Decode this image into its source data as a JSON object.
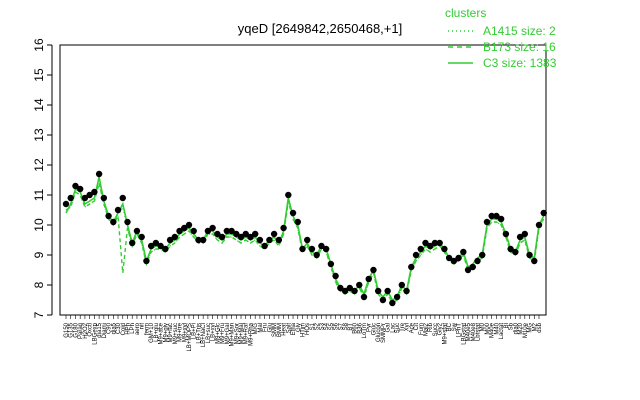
{
  "chart_data": {
    "type": "line",
    "title": "yqeD [2649842,2650468,+1]",
    "xlabel": "",
    "ylabel": "",
    "ylim": [
      7,
      16
    ],
    "yticks": [
      7,
      8,
      9,
      10,
      11,
      12,
      13,
      14,
      15,
      16
    ],
    "grid": false,
    "legend": {
      "title": "clusters",
      "placement": "top-right",
      "color": "#33cc33",
      "entries": [
        {
          "label": "A1415 size: 2",
          "style": "dotted"
        },
        {
          "label": "B173 size: 16",
          "style": "dashed"
        },
        {
          "label": "C3 size: 1383",
          "style": "solid"
        }
      ]
    },
    "x_tick_labels": [
      "G150",
      "G135",
      "G180",
      "Paraq",
      "H2O2",
      "Oxctl",
      "LBGexp",
      "dia15",
      "Diami",
      "C90",
      "dia5",
      "C30",
      "Cold",
      "HPh",
      "LPh",
      "aero",
      "nit",
      "ferm",
      "GM+10",
      "LB+glu",
      "M9+ace",
      "M9+gly",
      "M9+lac",
      "M9+suc",
      "M9+tre",
      "M9+xyl",
      "LB+MOPS",
      "LB+Pi",
      "LB+Tris",
      "LB+NaCl",
      "LB+suc",
      "LB+xyl",
      "M9+Glc",
      "M9+Fru",
      "M9+Gal",
      "M9+Man",
      "M9+Sor",
      "M9+Mal",
      "M9+Raf",
      "M9+Rha",
      "M/G",
      "Mal",
      "Fru",
      "Glu",
      "SMM",
      "BMM",
      "Heat",
      "Salt",
      "Efha",
      "Gly",
      "HTim",
      "HOs",
      "S1",
      "S2",
      "S3",
      "S4",
      "S5",
      "S6",
      "S7",
      "S8",
      "BT",
      "B60",
      "B36",
      "LoTm",
      "Pyr",
      "Gluc",
      "Glucon",
      "SMMPr",
      "Gal",
      "Lac",
      "Suc",
      "Tre",
      "Xyl",
      "Ace",
      "Cit",
      "Fum",
      "Mal2",
      "Rib",
      "Succ",
      "Gly2",
      "M9+stat",
      "BC",
      "Sw",
      "LPhT",
      "LBGstat",
      "M40e5",
      "M40e8",
      "Lbtstat",
      "M0",
      "M00",
      "M40e",
      "M40",
      "Lactat",
      "Bl",
      "Sb",
      "dia0",
      "M20",
      "M10e",
      "MG",
      "M2",
      "dsb"
    ],
    "series": [
      {
        "style": "solid",
        "values": [
          10.4,
          10.7,
          11.2,
          11.1,
          10.7,
          10.8,
          10.9,
          11.6,
          10.8,
          10.3,
          10.1,
          10.4,
          10.7,
          10.0,
          9.4,
          9.8,
          9.5,
          8.8,
          9.2,
          9.3,
          9.3,
          9.2,
          9.4,
          9.5,
          9.7,
          9.8,
          9.9,
          9.7,
          9.5,
          9.5,
          9.8,
          9.8,
          9.6,
          9.5,
          9.7,
          9.7,
          9.6,
          9.5,
          9.6,
          9.5,
          9.6,
          9.4,
          9.3,
          9.5,
          9.6,
          9.4,
          9.8,
          10.9,
          10.3,
          10.0,
          9.2,
          9.4,
          9.1,
          9.0,
          9.3,
          9.2,
          8.7,
          8.2,
          7.9,
          7.8,
          7.9,
          7.8,
          8.0,
          7.7,
          8.2,
          8.5,
          7.8,
          7.6,
          7.8,
          7.5,
          7.6,
          8.0,
          7.8,
          8.6,
          8.9,
          9.1,
          9.3,
          9.2,
          9.3,
          9.4,
          9.2,
          8.9,
          8.8,
          8.9,
          9.1,
          8.6,
          8.7,
          8.9,
          9.0,
          10.0,
          10.2,
          10.2,
          10.1,
          9.7,
          9.2,
          9.1,
          9.5,
          9.6,
          9.0,
          8.9,
          10.0,
          10.3
        ]
      },
      {
        "style": "dashed",
        "values": [
          10.5,
          10.6,
          11.1,
          11.0,
          10.6,
          10.7,
          10.8,
          11.4,
          10.7,
          10.2,
          10.0,
          10.3,
          8.4,
          9.9,
          9.3,
          9.7,
          9.4,
          8.7,
          9.1,
          9.2,
          9.2,
          9.1,
          9.3,
          9.4,
          9.6,
          9.7,
          9.8,
          9.6,
          9.4,
          9.4,
          9.7,
          9.7,
          9.5,
          9.4,
          9.6,
          9.6,
          9.5,
          9.4,
          9.5,
          9.4,
          9.5,
          9.3,
          9.2,
          9.4,
          9.5,
          9.3,
          9.7,
          10.8,
          10.2,
          9.9,
          9.1,
          9.3,
          9.0,
          8.9,
          9.2,
          9.1,
          8.6,
          8.1,
          7.8,
          7.7,
          7.8,
          7.7,
          7.9,
          7.6,
          8.1,
          8.4,
          7.7,
          7.5,
          7.7,
          7.4,
          7.5,
          7.9,
          7.7,
          8.5,
          8.8,
          9.0,
          9.2,
          9.1,
          9.2,
          9.3,
          9.1,
          8.8,
          8.7,
          8.8,
          9.0,
          8.5,
          8.6,
          8.8,
          8.9,
          9.9,
          10.1,
          10.1,
          10.0,
          9.6,
          9.1,
          9.0,
          9.4,
          9.5,
          8.9,
          8.8,
          9.9,
          10.2
        ]
      },
      {
        "style": "dotted",
        "values": [
          10.5,
          10.6,
          11.1,
          11.0,
          10.6,
          10.7,
          10.8,
          11.4,
          10.7,
          10.2,
          10.0,
          10.3,
          10.6,
          9.9,
          9.3,
          9.7,
          9.4,
          8.7,
          9.1,
          9.2,
          9.2,
          9.1,
          9.3,
          9.4,
          9.6,
          9.7,
          9.8,
          9.6,
          9.4,
          9.4,
          9.7,
          9.7,
          9.5,
          9.4,
          9.6,
          9.6,
          9.5,
          9.4,
          9.5,
          9.4,
          9.5,
          9.3,
          9.2,
          9.4,
          9.5,
          9.3,
          9.7,
          10.8,
          10.2,
          9.9,
          9.1,
          9.3,
          9.0,
          8.9,
          9.2,
          9.1,
          8.6,
          8.1,
          7.8,
          7.7,
          7.8,
          7.7,
          7.9,
          7.6,
          8.1,
          8.4,
          7.7,
          7.5,
          7.7,
          7.4,
          7.5,
          7.9,
          7.7,
          8.5,
          8.8,
          9.0,
          9.2,
          9.1,
          9.2,
          9.3,
          9.1,
          8.8,
          8.7,
          8.8,
          9.0,
          8.5,
          8.6,
          8.8,
          8.9,
          9.9,
          10.1,
          10.1,
          10.0,
          9.6,
          9.1,
          9.0,
          9.4,
          9.5,
          8.9,
          8.8,
          9.9,
          10.2
        ]
      }
    ],
    "points": [
      10.7,
      10.9,
      11.3,
      11.2,
      10.9,
      11.0,
      11.1,
      11.7,
      10.9,
      10.3,
      10.1,
      10.5,
      10.9,
      10.1,
      9.4,
      9.8,
      9.6,
      8.8,
      9.3,
      9.4,
      9.3,
      9.2,
      9.5,
      9.6,
      9.8,
      9.9,
      10.0,
      9.8,
      9.5,
      9.5,
      9.8,
      9.9,
      9.7,
      9.6,
      9.8,
      9.8,
      9.7,
      9.6,
      9.7,
      9.6,
      9.7,
      9.5,
      9.3,
      9.5,
      9.7,
      9.5,
      9.9,
      11.0,
      10.4,
      10.1,
      9.2,
      9.5,
      9.2,
      9.0,
      9.3,
      9.2,
      8.7,
      8.3,
      7.9,
      7.8,
      7.9,
      7.8,
      8.0,
      7.6,
      8.2,
      8.5,
      7.8,
      7.5,
      7.8,
      7.4,
      7.6,
      8.0,
      7.8,
      8.6,
      9.0,
      9.2,
      9.4,
      9.3,
      9.4,
      9.4,
      9.2,
      8.9,
      8.8,
      8.9,
      9.1,
      8.5,
      8.6,
      8.8,
      9.0,
      10.1,
      10.3,
      10.3,
      10.2,
      9.7,
      9.2,
      9.1,
      9.6,
      9.7,
      9.0,
      8.8,
      10.0,
      10.4
    ]
  }
}
